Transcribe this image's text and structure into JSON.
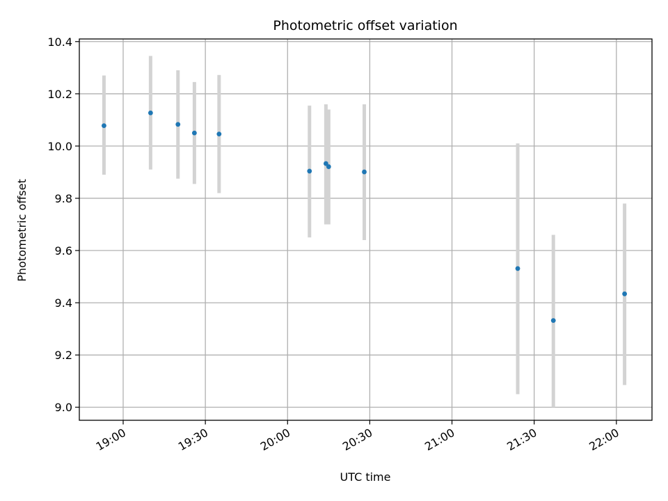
{
  "chart_data": {
    "type": "scatter",
    "title": "Photometric offset variation",
    "xlabel": "UTC time",
    "ylabel": "Photometric offset",
    "ylim": [
      8.95,
      10.41
    ],
    "xlim": [
      "18:44",
      "22:13"
    ],
    "grid": true,
    "x_ticks": [
      "19:00",
      "19:30",
      "20:00",
      "20:30",
      "21:00",
      "21:30",
      "22:00"
    ],
    "y_ticks": [
      "9.0",
      "9.2",
      "9.4",
      "9.6",
      "9.8",
      "10.0",
      "10.2",
      "10.4"
    ],
    "colors": {
      "point": "#1f77b4",
      "errorbar": "#d3d3d3",
      "grid": "#b0b0b0"
    },
    "points": [
      {
        "x": "18:53",
        "y": 10.078,
        "yerr_low": 9.89,
        "yerr_high": 10.27
      },
      {
        "x": "19:10",
        "y": 10.127,
        "yerr_low": 9.91,
        "yerr_high": 10.345
      },
      {
        "x": "19:20",
        "y": 10.083,
        "yerr_low": 9.875,
        "yerr_high": 10.29
      },
      {
        "x": "19:26",
        "y": 10.05,
        "yerr_low": 9.855,
        "yerr_high": 10.245
      },
      {
        "x": "19:35",
        "y": 10.046,
        "yerr_low": 9.82,
        "yerr_high": 10.272
      },
      {
        "x": "20:08",
        "y": 9.904,
        "yerr_low": 9.65,
        "yerr_high": 10.155
      },
      {
        "x": "20:14",
        "y": 9.933,
        "yerr_low": 9.7,
        "yerr_high": 10.16
      },
      {
        "x": "20:15",
        "y": 9.921,
        "yerr_low": 9.7,
        "yerr_high": 10.14
      },
      {
        "x": "20:28",
        "y": 9.901,
        "yerr_low": 9.64,
        "yerr_high": 10.16
      },
      {
        "x": "21:24",
        "y": 9.531,
        "yerr_low": 9.05,
        "yerr_high": 10.01
      },
      {
        "x": "21:37",
        "y": 9.332,
        "yerr_low": 9.0,
        "yerr_high": 9.66
      },
      {
        "x": "22:03",
        "y": 9.434,
        "yerr_low": 9.085,
        "yerr_high": 9.78
      }
    ]
  }
}
